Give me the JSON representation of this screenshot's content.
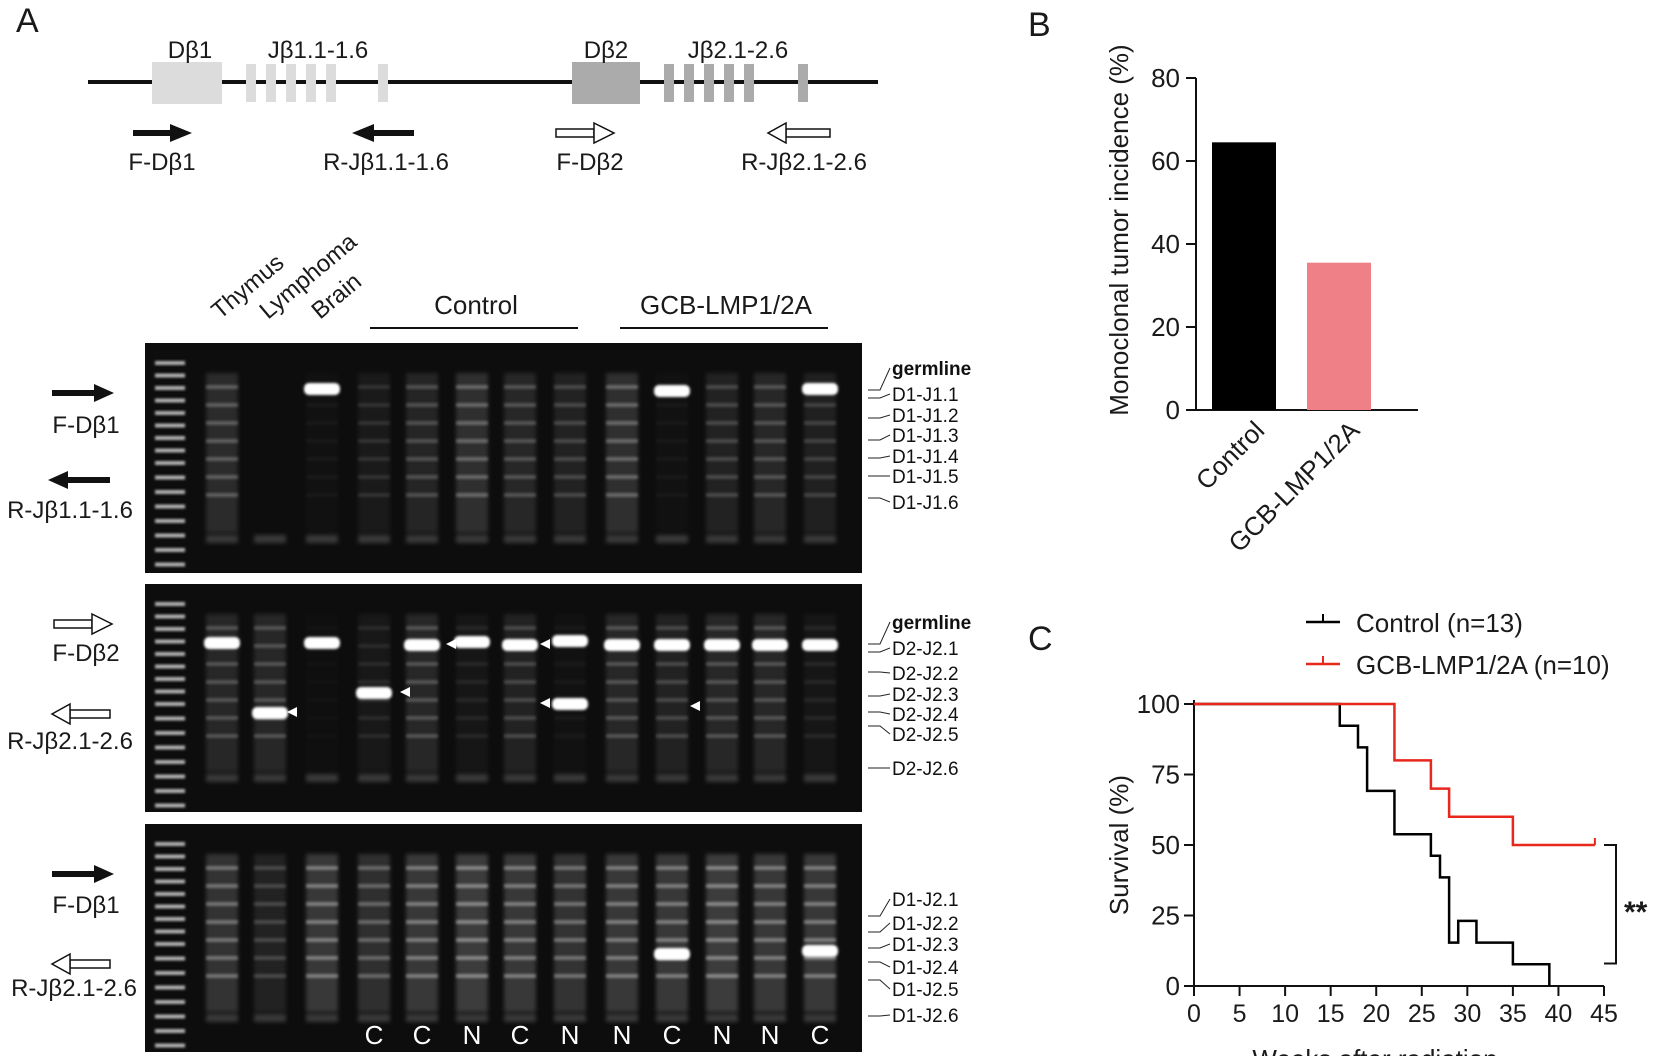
{
  "panels": {
    "a": "A",
    "b": "B",
    "c": "C"
  },
  "gene_map": {
    "segments": [
      "Dβ1",
      "Jβ1.1-1.6",
      "Dβ2",
      "Jβ2.1-2.6"
    ],
    "primers": [
      "F-Dβ1",
      "R-Jβ1.1-1.6",
      "F-Dβ2",
      "R-Jβ2.1-2.6"
    ]
  },
  "gels": {
    "lane_labels": [
      "Thymus",
      "Lymphoma",
      "Brain"
    ],
    "groups": [
      "Control",
      "GCB-LMP1/2A"
    ],
    "gel1": {
      "primers": [
        "F-Dβ1",
        "R-Jβ1.1-1.6"
      ],
      "bands": [
        "germline",
        "D1-J1.1",
        "D1-J1.2",
        "D1-J1.3",
        "D1-J1.4",
        "D1-J1.5",
        "D1-J1.6"
      ]
    },
    "gel2": {
      "primers": [
        "F-Dβ2",
        "R-Jβ2.1-2.6"
      ],
      "bands": [
        "germline",
        "D2-J2.1",
        "D2-J2.2",
        "D2-J2.3",
        "D2-J2.4",
        "D2-J2.5",
        "D2-J2.6"
      ]
    },
    "gel3": {
      "primers": [
        "F-Dβ1",
        "R-Jβ2.1-2.6"
      ],
      "bands": [
        "D1-J2.1",
        "D1-J2.2",
        "D1-J2.3",
        "D1-J2.4",
        "D1-J2.5",
        "D1-J2.6"
      ],
      "clonality": [
        "C",
        "C",
        "N",
        "C",
        "N",
        "N",
        "C",
        "N",
        "N",
        "C"
      ]
    }
  },
  "chart_data": [
    {
      "type": "bar",
      "title": "",
      "xlabel": "",
      "ylabel": "Monoclonal tumor incidence (%)",
      "categories": [
        "Control",
        "GCB-LMP1/2A"
      ],
      "values": [
        64.5,
        35.5
      ],
      "colors": [
        "#000000",
        "#f08088"
      ],
      "ylim": [
        0,
        80
      ],
      "yticks": [
        "0",
        "20",
        "40",
        "60",
        "80"
      ],
      "grid": false
    },
    {
      "type": "line",
      "title": "",
      "xlabel": "Weeks  after radiation",
      "ylabel": "Survival (%)",
      "xlim": [
        0,
        45
      ],
      "ylim": [
        0,
        100
      ],
      "xticks": [
        "0",
        "5",
        "10",
        "15",
        "20",
        "25",
        "30",
        "35",
        "40",
        "45"
      ],
      "yticks": [
        "0",
        "25",
        "50",
        "75",
        "100"
      ],
      "legend_position": "top",
      "significance": "**",
      "series": [
        {
          "name": "Control (n=13)",
          "color": "#000000",
          "x": [
            0,
            16,
            18,
            19,
            22,
            26,
            27,
            28,
            29,
            31,
            35,
            39
          ],
          "y": [
            100,
            92.3,
            84.6,
            69.2,
            53.8,
            46.2,
            38.5,
            15.4,
            23.1,
            15.4,
            7.7,
            0
          ]
        },
        {
          "name": "GCB-LMP1/2A (n=10)",
          "color": "#e8281c",
          "x": [
            0,
            22,
            26,
            28,
            35,
            44
          ],
          "y": [
            100,
            80,
            70,
            60,
            50,
            50
          ]
        }
      ]
    }
  ]
}
